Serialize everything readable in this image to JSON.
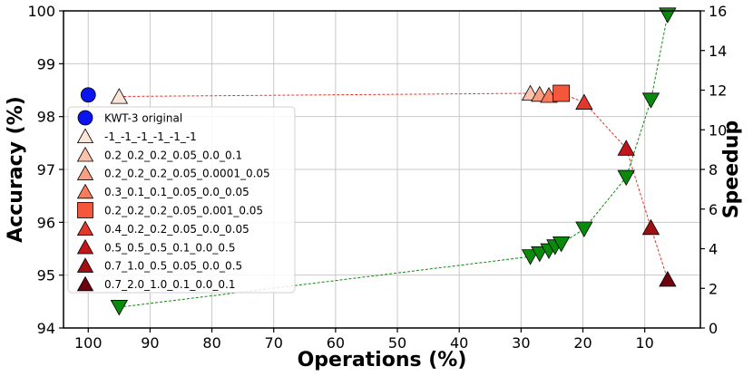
{
  "chart_data": {
    "type": "scatter",
    "xlabel": "Operations (%)",
    "ylabel": "Accuracy (%)",
    "y2label": "Speedup",
    "x_reversed": true,
    "xlim": [
      104,
      1
    ],
    "ylim": [
      94,
      100
    ],
    "y2lim": [
      0,
      16
    ],
    "xticks": [
      100,
      90,
      80,
      70,
      60,
      50,
      40,
      30,
      20,
      10
    ],
    "yticks": [
      94,
      95,
      96,
      97,
      98,
      99,
      100
    ],
    "y2ticks": [
      0,
      2,
      4,
      6,
      8,
      10,
      12,
      14,
      16
    ],
    "grid": true,
    "legend_position": "left",
    "series": [
      {
        "name": "KWT-3 original",
        "marker": "circle",
        "color": "#0a14f0",
        "x": [
          100
        ],
        "y": [
          98.41
        ]
      },
      {
        "name": "-1_-1_-1_-1_-1_-1",
        "marker": "triangle-up",
        "color": "#fde4d8",
        "x": [
          95
        ],
        "y": [
          98.38
        ]
      },
      {
        "name": "0.2_0.2_0.2_0.05_0.0_0.1",
        "marker": "triangle-up",
        "color": "#fcc3ac",
        "x": [
          28.5
        ],
        "y": [
          98.44
        ]
      },
      {
        "name": "0.2_0.2_0.2_0.05_0.0001_0.05",
        "marker": "triangle-up",
        "color": "#fc9f81",
        "x": [
          27
        ],
        "y": [
          98.42
        ]
      },
      {
        "name": "0.3_0.1_0.1_0.05_0.0_0.05",
        "marker": "triangle-up",
        "color": "#fb7b5b",
        "x": [
          25.5
        ],
        "y": [
          98.4
        ]
      },
      {
        "name": "0.2_0.2_0.2_0.05_0.001_0.05",
        "marker": "square",
        "color": "#f5573d",
        "x": [
          23.5
        ],
        "y": [
          98.44
        ]
      },
      {
        "name": "0.4_0.2_0.2_0.05_0.0_0.05",
        "marker": "triangle-up",
        "color": "#e2372b",
        "x": [
          19.8
        ],
        "y": [
          98.27
        ]
      },
      {
        "name": "0.5_0.5_0.5_0.1_0.0_0.5",
        "marker": "triangle-up",
        "color": "#c3161b",
        "x": [
          13
        ],
        "y": [
          97.4
        ]
      },
      {
        "name": "0.7_1.0_0.5_0.05_0.0_0.5",
        "marker": "triangle-up",
        "color": "#a10f15",
        "x": [
          9
        ],
        "y": [
          95.9
        ]
      },
      {
        "name": "0.7_2.0_1.0_0.1_0.0_0.1",
        "marker": "triangle-up",
        "color": "#6d010e",
        "x": [
          6.3
        ],
        "y": [
          94.92
        ]
      }
    ],
    "accuracy_line": {
      "color": "#e8322a",
      "x": [
        95,
        28.5,
        27,
        25.5,
        23.5,
        19.8,
        13,
        9,
        6.3
      ],
      "y": [
        98.38,
        98.44,
        98.42,
        98.4,
        98.44,
        98.27,
        97.4,
        95.9,
        94.92
      ]
    },
    "speedup_series": {
      "axis": "right",
      "marker": "triangle-down",
      "color": "#0a8a0a",
      "x": [
        95,
        28.5,
        27,
        25.5,
        24.5,
        23.5,
        19.8,
        13,
        9,
        6.3
      ],
      "y": [
        1.05,
        3.6,
        3.75,
        3.9,
        4.1,
        4.25,
        5.0,
        7.6,
        11.5,
        15.8
      ]
    }
  }
}
